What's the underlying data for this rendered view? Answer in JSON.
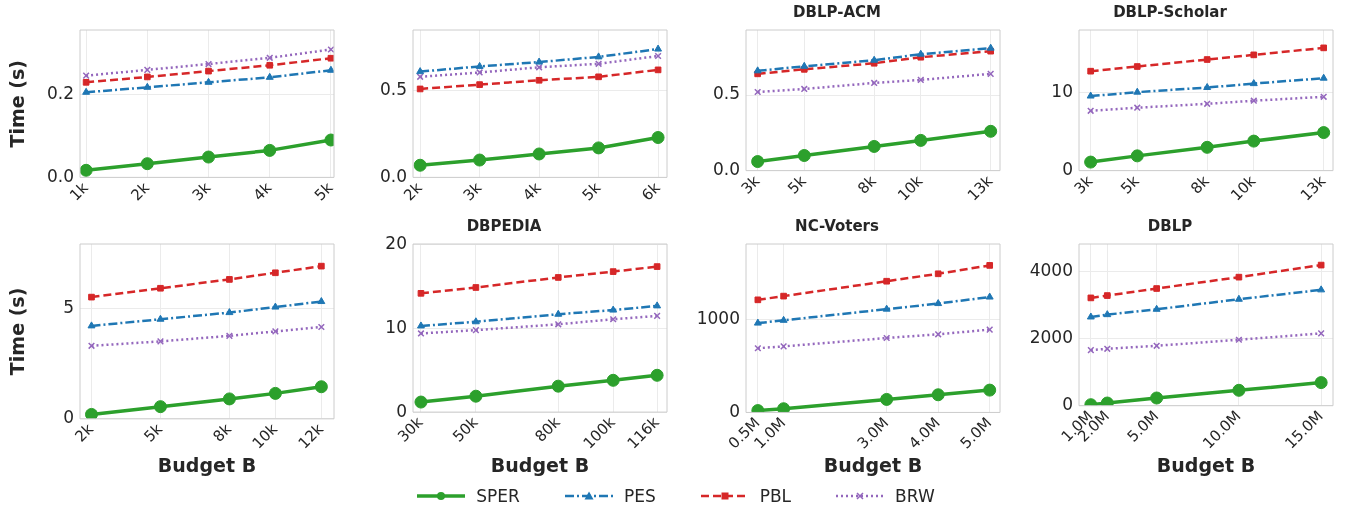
{
  "chart_data": [
    {
      "type": "line",
      "ylabel": "Time (s)",
      "x": [
        1,
        2,
        3,
        4,
        5
      ],
      "xlim": [
        0.9,
        5.05
      ],
      "xticks": [
        {
          "value": 1,
          "label": "1k"
        },
        {
          "value": 2,
          "label": "2k"
        },
        {
          "value": 3,
          "label": "3k"
        },
        {
          "value": 4,
          "label": "4k"
        },
        {
          "value": 5,
          "label": "5k"
        }
      ],
      "ylim": [
        0,
        0.355
      ],
      "yticks": [
        {
          "value": 0,
          "label": "0.0"
        },
        {
          "value": 0.2,
          "label": "0.2"
        }
      ],
      "grid": true,
      "legend": "bottom",
      "series": [
        {
          "name": "SPER",
          "color": "#2ca02c",
          "marker": "circle",
          "line_style": "solid",
          "values": [
            0.017,
            0.033,
            0.049,
            0.065,
            0.09
          ]
        },
        {
          "name": "PES",
          "color": "#1f77b4",
          "marker": "triangle",
          "line_style": "dashdot",
          "values": [
            0.205,
            0.217,
            0.229,
            0.241,
            0.258
          ]
        },
        {
          "name": "PBL",
          "color": "#d62728",
          "marker": "square",
          "line_style": "dashed",
          "values": [
            0.229,
            0.242,
            0.256,
            0.27,
            0.287
          ]
        },
        {
          "name": "BRW",
          "color": "#9467bd",
          "marker": "cross",
          "line_style": "dotted",
          "values": [
            0.245,
            0.259,
            0.273,
            0.288,
            0.308
          ]
        }
      ]
    },
    {
      "type": "line",
      "x": [
        2,
        3,
        4,
        5,
        6
      ],
      "xlim": [
        1.88,
        6.15
      ],
      "xticks": [
        {
          "value": 2,
          "label": "2k"
        },
        {
          "value": 3,
          "label": "3k"
        },
        {
          "value": 4,
          "label": "4k"
        },
        {
          "value": 5,
          "label": "5k"
        },
        {
          "value": 6,
          "label": "6k"
        }
      ],
      "ylim": [
        0,
        0.85
      ],
      "yticks": [
        {
          "value": 0,
          "label": "0.0"
        },
        {
          "value": 0.5,
          "label": "0.5"
        }
      ],
      "grid": true,
      "series": [
        {
          "color": "#2ca02c",
          "marker": "circle",
          "line_style": "solid",
          "values": [
            0.07,
            0.1,
            0.135,
            0.17,
            0.23
          ]
        },
        {
          "color": "#1f77b4",
          "marker": "triangle",
          "line_style": "dashdot",
          "values": [
            0.61,
            0.64,
            0.665,
            0.695,
            0.74
          ]
        },
        {
          "color": "#d62728",
          "marker": "square",
          "line_style": "dashed",
          "values": [
            0.51,
            0.535,
            0.56,
            0.58,
            0.62
          ]
        },
        {
          "color": "#9467bd",
          "marker": "cross",
          "line_style": "dotted",
          "values": [
            0.58,
            0.605,
            0.635,
            0.655,
            0.7
          ]
        }
      ]
    },
    {
      "type": "line",
      "title": "DBLP-ACM",
      "x": [
        3,
        5,
        8,
        10,
        13
      ],
      "xlim": [
        2.5,
        13.4
      ],
      "xticks": [
        {
          "value": 3,
          "label": "3k"
        },
        {
          "value": 5,
          "label": "5k"
        },
        {
          "value": 8,
          "label": "8k"
        },
        {
          "value": 10,
          "label": "10k"
        },
        {
          "value": 13,
          "label": "13k"
        }
      ],
      "ylim": [
        0,
        0.93
      ],
      "yticks": [
        {
          "value": 0,
          "label": "0.0"
        },
        {
          "value": 0.5,
          "label": "0.5"
        }
      ],
      "grid": true,
      "series": [
        {
          "color": "#2ca02c",
          "marker": "circle",
          "line_style": "solid",
          "values": [
            0.06,
            0.1,
            0.16,
            0.2,
            0.26
          ]
        },
        {
          "color": "#1f77b4",
          "marker": "triangle",
          "line_style": "dashdot",
          "values": [
            0.66,
            0.69,
            0.73,
            0.77,
            0.81
          ]
        },
        {
          "color": "#d62728",
          "marker": "square",
          "line_style": "dashed",
          "values": [
            0.64,
            0.67,
            0.71,
            0.75,
            0.79
          ]
        },
        {
          "color": "#9467bd",
          "marker": "cross",
          "line_style": "dotted",
          "values": [
            0.52,
            0.54,
            0.58,
            0.6,
            0.64
          ]
        }
      ]
    },
    {
      "type": "line",
      "title": "DBLP-Scholar",
      "x": [
        3,
        5,
        8,
        10,
        13
      ],
      "xlim": [
        2.5,
        13.4
      ],
      "xticks": [
        {
          "value": 3,
          "label": "3k"
        },
        {
          "value": 5,
          "label": "5k"
        },
        {
          "value": 8,
          "label": "8k"
        },
        {
          "value": 10,
          "label": "10k"
        },
        {
          "value": 13,
          "label": "13k"
        }
      ],
      "ylim": [
        0,
        18.1
      ],
      "yticks": [
        0,
        10
      ],
      "grid": true,
      "series": [
        {
          "color": "#2ca02c",
          "marker": "circle",
          "line_style": "solid",
          "values": [
            1.1,
            1.9,
            3.0,
            3.8,
            4.9
          ]
        },
        {
          "color": "#1f77b4",
          "marker": "triangle",
          "line_style": "dashdot",
          "values": [
            9.6,
            10.1,
            10.7,
            11.2,
            11.9
          ]
        },
        {
          "color": "#d62728",
          "marker": "square",
          "line_style": "dashed",
          "values": [
            12.8,
            13.4,
            14.3,
            14.9,
            15.8
          ]
        },
        {
          "color": "#9467bd",
          "marker": "cross",
          "line_style": "dotted",
          "values": [
            7.7,
            8.1,
            8.6,
            9.0,
            9.5
          ]
        }
      ]
    },
    {
      "type": "line",
      "ylabel": "Time (s)",
      "xlabel": "Budget B",
      "x": [
        2,
        5,
        8,
        10,
        12
      ],
      "xlim": [
        1.5,
        12.55
      ],
      "xticks": [
        {
          "value": 2,
          "label": "2k"
        },
        {
          "value": 5,
          "label": "5k"
        },
        {
          "value": 8,
          "label": "8k"
        },
        {
          "value": 10,
          "label": "10k"
        },
        {
          "value": 12,
          "label": "12k"
        }
      ],
      "ylim": [
        0,
        7.9
      ],
      "yticks": [
        0,
        5
      ],
      "grid": true,
      "series": [
        {
          "color": "#2ca02c",
          "marker": "circle",
          "line_style": "solid",
          "values": [
            0.2,
            0.55,
            0.9,
            1.15,
            1.45
          ]
        },
        {
          "color": "#1f77b4",
          "marker": "triangle",
          "line_style": "dashdot",
          "values": [
            4.2,
            4.5,
            4.8,
            5.05,
            5.3
          ]
        },
        {
          "color": "#d62728",
          "marker": "square",
          "line_style": "dashed",
          "values": [
            5.5,
            5.9,
            6.3,
            6.6,
            6.9
          ]
        },
        {
          "color": "#9467bd",
          "marker": "cross",
          "line_style": "dotted",
          "values": [
            3.3,
            3.5,
            3.75,
            3.95,
            4.15
          ]
        }
      ]
    },
    {
      "type": "line",
      "title": "DBPEDIA",
      "xlabel": "Budget B",
      "x": [
        30,
        50,
        80,
        100,
        116
      ],
      "xlim": [
        27.1,
        119.6
      ],
      "xticks": [
        {
          "value": 30,
          "label": "30k"
        },
        {
          "value": 50,
          "label": "50k"
        },
        {
          "value": 80,
          "label": "80k"
        },
        {
          "value": 100,
          "label": "100k"
        },
        {
          "value": 116,
          "label": "116k"
        }
      ],
      "ylim": [
        0,
        20.1
      ],
      "yticks": [
        0,
        10,
        20
      ],
      "grid": true,
      "series": [
        {
          "color": "#2ca02c",
          "marker": "circle",
          "line_style": "solid",
          "values": [
            1.2,
            1.9,
            3.1,
            3.8,
            4.4
          ]
        },
        {
          "color": "#1f77b4",
          "marker": "triangle",
          "line_style": "dashdot",
          "values": [
            10.3,
            10.8,
            11.7,
            12.2,
            12.7
          ]
        },
        {
          "color": "#d62728",
          "marker": "square",
          "line_style": "dashed",
          "values": [
            14.2,
            14.9,
            16.1,
            16.8,
            17.4
          ]
        },
        {
          "color": "#9467bd",
          "marker": "cross",
          "line_style": "dotted",
          "values": [
            9.4,
            9.8,
            10.5,
            11.1,
            11.5
          ]
        }
      ]
    },
    {
      "type": "line",
      "title": "NC-Voters",
      "xlabel": "Budget B",
      "x": [
        0.5,
        1,
        3,
        4,
        5
      ],
      "xlim": [
        0.27,
        5.2
      ],
      "xticks": [
        {
          "value": 0.5,
          "label": "0.5M"
        },
        {
          "value": 1,
          "label": "1.0M"
        },
        {
          "value": 3,
          "label": "3.0M"
        },
        {
          "value": 4,
          "label": "4.0M"
        },
        {
          "value": 5,
          "label": "5.0M"
        }
      ],
      "ylim": [
        0,
        1810
      ],
      "yticks": [
        0,
        1000
      ],
      "grid": true,
      "series": [
        {
          "color": "#2ca02c",
          "marker": "circle",
          "line_style": "solid",
          "values": [
            20,
            40,
            140,
            190,
            240
          ]
        },
        {
          "color": "#1f77b4",
          "marker": "triangle",
          "line_style": "dashdot",
          "values": [
            960,
            990,
            1110,
            1170,
            1240
          ]
        },
        {
          "color": "#d62728",
          "marker": "square",
          "line_style": "dashed",
          "values": [
            1210,
            1250,
            1410,
            1490,
            1580
          ]
        },
        {
          "color": "#9467bd",
          "marker": "cross",
          "line_style": "dotted",
          "values": [
            690,
            710,
            800,
            840,
            890
          ]
        }
      ]
    },
    {
      "type": "line",
      "title": "DBLP",
      "xlabel": "Budget B",
      "x": [
        1,
        2,
        5,
        10,
        15
      ],
      "xlim": [
        0.28,
        15.72
      ],
      "xticks": [
        {
          "value": 1,
          "label": "1.0M"
        },
        {
          "value": 2,
          "label": "2.0M"
        },
        {
          "value": 5,
          "label": "5.0M"
        },
        {
          "value": 10,
          "label": "10.0M"
        },
        {
          "value": 15,
          "label": "15.0M"
        }
      ],
      "ylim": [
        0,
        4830
      ],
      "yticks": [
        0,
        2000,
        4000
      ],
      "grid": true,
      "series": [
        {
          "color": "#2ca02c",
          "marker": "circle",
          "line_style": "solid",
          "values": [
            30,
            80,
            230,
            460,
            690
          ]
        },
        {
          "color": "#1f77b4",
          "marker": "triangle",
          "line_style": "dashdot",
          "values": [
            2650,
            2720,
            2880,
            3180,
            3460
          ]
        },
        {
          "color": "#d62728",
          "marker": "square",
          "line_style": "dashed",
          "values": [
            3220,
            3290,
            3500,
            3840,
            4200
          ]
        },
        {
          "color": "#9467bd",
          "marker": "cross",
          "line_style": "dotted",
          "values": [
            1660,
            1700,
            1790,
            1970,
            2160
          ]
        }
      ]
    }
  ]
}
